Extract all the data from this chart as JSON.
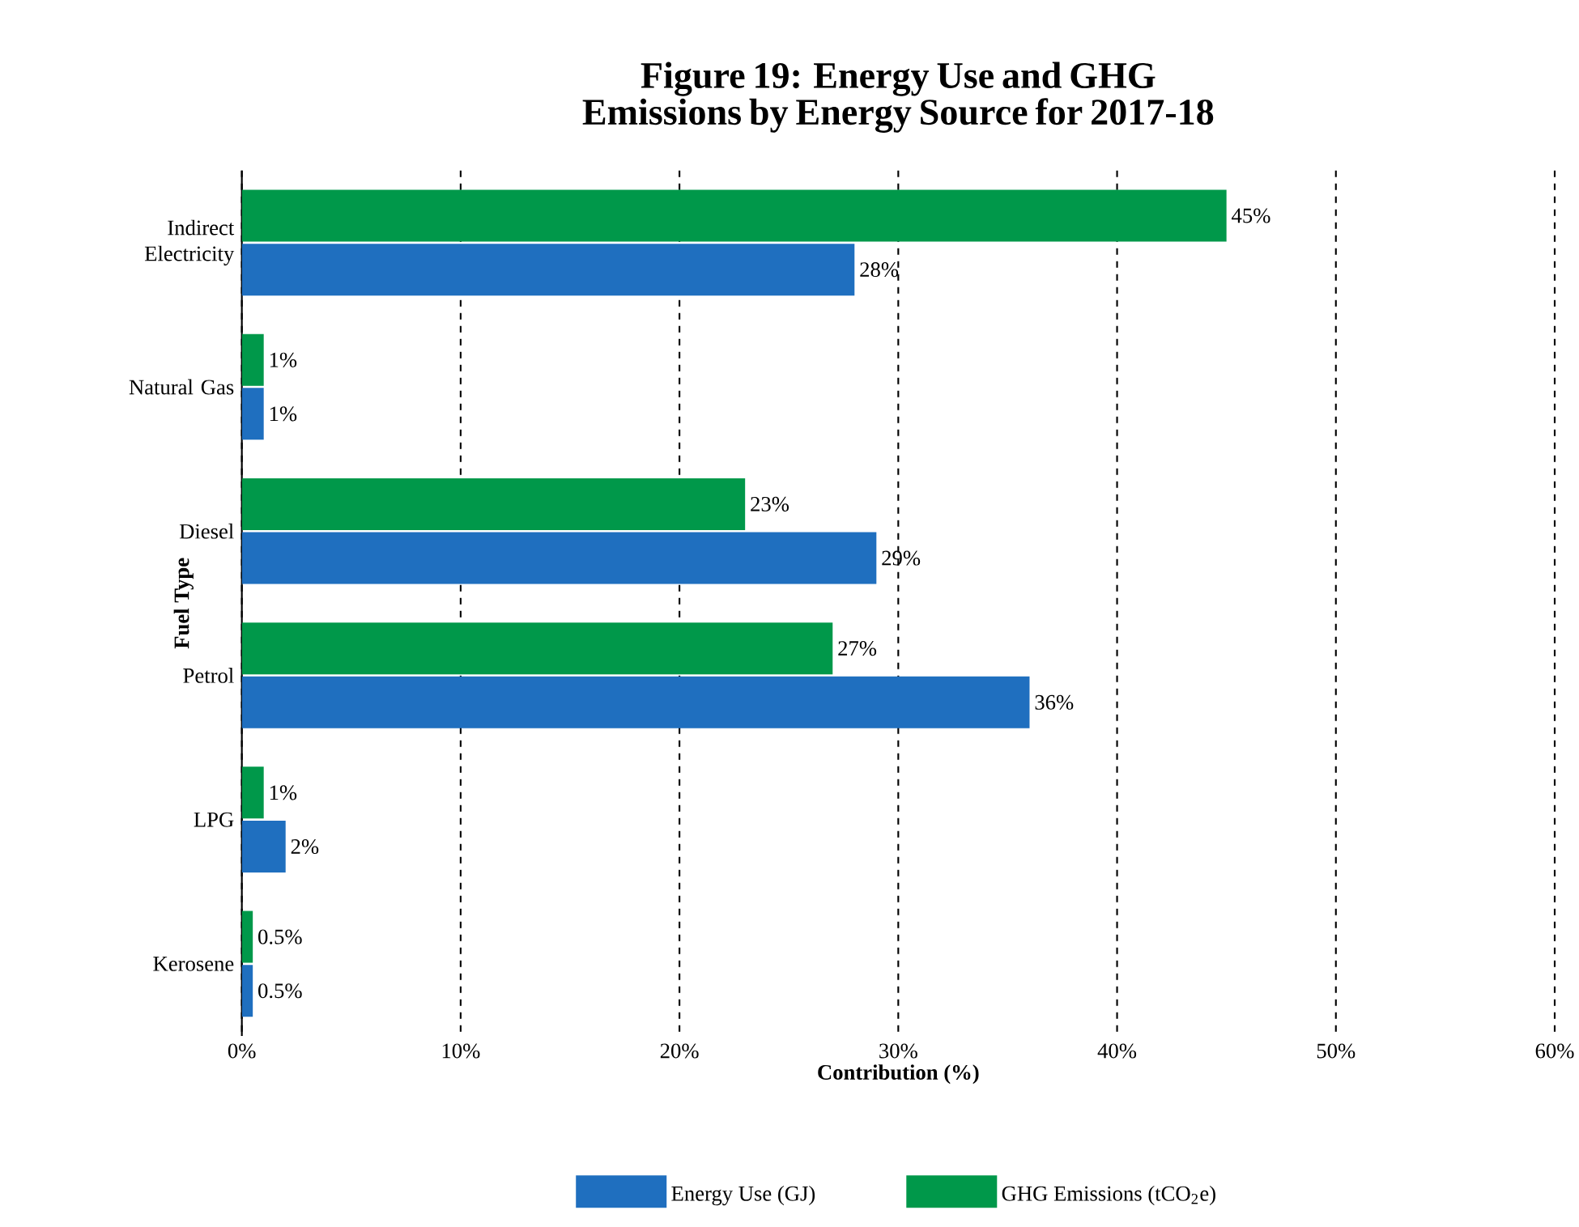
{
  "chart_data": {
    "type": "bar",
    "orientation": "horizontal",
    "title": "Figure 19: Energy Use and GHG Emissions by Energy Source for 2017-18",
    "xlabel": "Contribution (%)",
    "ylabel": "Fuel Type",
    "categories": [
      "Indirect Electricity",
      "Natural Gas",
      "Diesel",
      "Petrol",
      "LPG",
      "Kerosene"
    ],
    "series": [
      {
        "name": "Energy Use (GJ)",
        "color": "#1f6fbf",
        "values": [
          28,
          1,
          29,
          36,
          2,
          0.5
        ],
        "value_labels": [
          "28%",
          "1%",
          "29%",
          "36%",
          "2%",
          "0.5%"
        ]
      },
      {
        "name": "GHG Emissions (tCO$_{2}$e)",
        "color": "#00984a",
        "values": [
          45,
          1,
          23,
          27,
          1,
          0.5
        ],
        "value_labels": [
          "45%",
          "1%",
          "23%",
          "27%",
          "1%",
          "0.5%"
        ]
      }
    ],
    "xlim": [
      0,
      60
    ],
    "xticks": [
      {
        "value": 0,
        "label": "0%"
      },
      {
        "value": 10,
        "label": "10%"
      },
      {
        "value": 20,
        "label": "20%"
      },
      {
        "value": 30,
        "label": "30%"
      },
      {
        "value": 40,
        "label": "40%"
      },
      {
        "value": 50,
        "label": "50%"
      },
      {
        "value": 60,
        "label": "60%"
      }
    ],
    "grid": "x",
    "legend": "bottom"
  }
}
